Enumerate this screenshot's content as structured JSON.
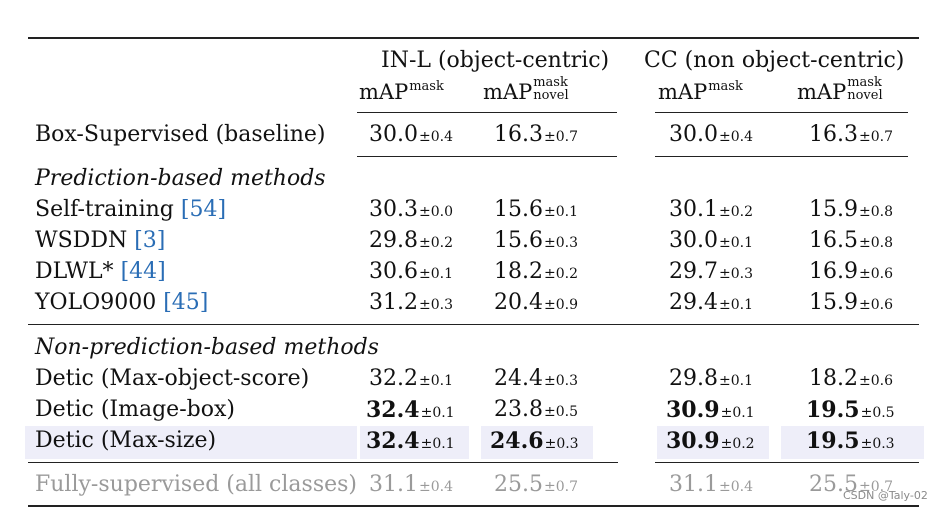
{
  "header": {
    "group_inl": "IN-L (object-centric)",
    "group_cc": "CC (non object-centric)",
    "col_map": "mAP",
    "col_map_sup": "mask",
    "col_map_novel_sup": "mask",
    "col_map_novel_sub": "novel"
  },
  "rows": {
    "box": {
      "label": "Box-Supervised (baseline)",
      "v": [
        "30.0",
        "16.3",
        "30.0",
        "16.3"
      ],
      "s": [
        "±0.4",
        "±0.7",
        "±0.4",
        "±0.7"
      ]
    },
    "sec1": "Prediction-based methods",
    "selftrain": {
      "label": "Self-training ",
      "cite": "[54]",
      "v": [
        "30.3",
        "15.6",
        "30.1",
        "15.9"
      ],
      "s": [
        "±0.0",
        "±0.1",
        "±0.2",
        "±0.8"
      ]
    },
    "wsddn": {
      "label": "WSDDN ",
      "cite": "[3]",
      "v": [
        "29.8",
        "15.6",
        "30.0",
        "16.5"
      ],
      "s": [
        "±0.2",
        "±0.3",
        "±0.1",
        "±0.8"
      ]
    },
    "dlwl": {
      "label": "DLWL* ",
      "cite": "[44]",
      "v": [
        "30.6",
        "18.2",
        "29.7",
        "16.9"
      ],
      "s": [
        "±0.1",
        "±0.2",
        "±0.3",
        "±0.6"
      ]
    },
    "yolo": {
      "label": "YOLO9000 ",
      "cite": "[45]",
      "v": [
        "31.2",
        "20.4",
        "29.4",
        "15.9"
      ],
      "s": [
        "±0.3",
        "±0.9",
        "±0.1",
        "±0.6"
      ]
    },
    "sec2": "Non-prediction-based methods",
    "maxobj": {
      "label": "Detic (Max-object-score)",
      "v": [
        "32.2",
        "24.4",
        "29.8",
        "18.2"
      ],
      "s": [
        "±0.1",
        "±0.3",
        "±0.1",
        "±0.6"
      ]
    },
    "imgbox": {
      "label": "Detic (Image-box)",
      "v": [
        "32.4",
        "23.8",
        "30.9",
        "19.5"
      ],
      "s": [
        "±0.1",
        "±0.5",
        "±0.1",
        "±0.5"
      ]
    },
    "maxsize": {
      "label": "Detic (Max-size)",
      "v": [
        "32.4",
        "24.6",
        "30.9",
        "19.5"
      ],
      "s": [
        "±0.1",
        "±0.3",
        "±0.2",
        "±0.3"
      ]
    },
    "fully": {
      "label": "Fully-supervised (all classes)",
      "v": [
        "31.1",
        "25.5",
        "31.1",
        "25.5"
      ],
      "s": [
        "±0.4",
        "±0.7",
        "±0.4",
        "±0.7"
      ]
    }
  },
  "watermark": "CSDN @Taly-02",
  "colors": {
    "cite": "#2a6db5",
    "highlight": "#eeeef9",
    "faint": "#9a9a9a"
  }
}
